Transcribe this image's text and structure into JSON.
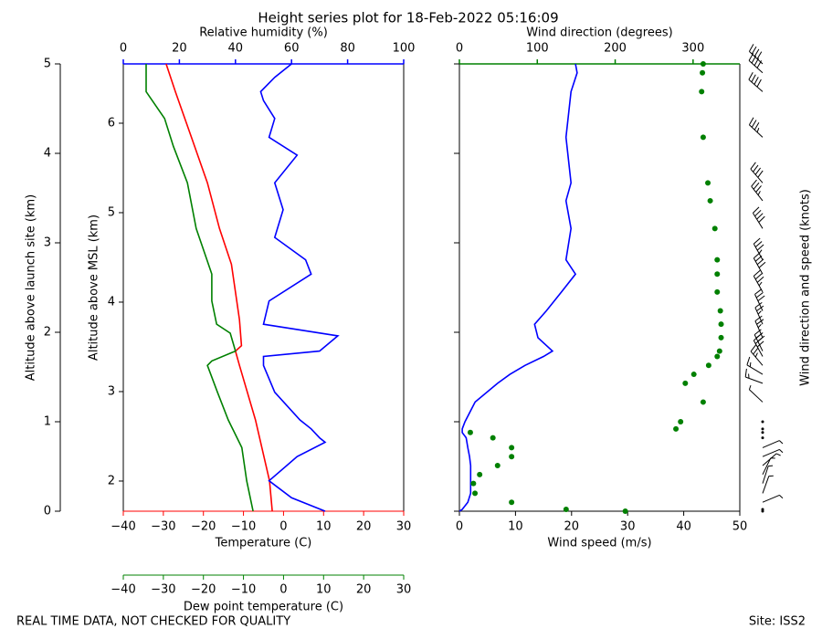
{
  "title": "Height series plot for 18-Feb-2022 05:16:09",
  "notice": "REAL TIME DATA, NOT CHECKED FOR QUALITY",
  "site": "Site: ISS2",
  "chart_data": [
    {
      "type": "line",
      "ylabel": "Altitude above launch site (km)",
      "ylim": [
        0,
        5
      ],
      "yticks": [
        0,
        1,
        2,
        3,
        4,
        5
      ],
      "y2label": "Altitude above MSL (km)",
      "y2lim": [
        1.663,
        6.663
      ],
      "y2ticks": [
        2,
        3,
        4,
        5,
        6
      ],
      "xlabel": "Temperature (C)",
      "xlim": [
        -40,
        30
      ],
      "xticks": [
        {
          "value": -40,
          "label": "−40"
        },
        {
          "value": -30,
          "label": "−30"
        },
        {
          "value": -20,
          "label": "−20"
        },
        {
          "value": -10,
          "label": "−10"
        },
        0,
        10,
        20,
        30
      ],
      "x2label": "Dew point temperature (C)",
      "x2lim": [
        -40,
        30
      ],
      "x2ticks": [
        {
          "value": -40,
          "label": "−40"
        },
        {
          "value": -30,
          "label": "−30"
        },
        {
          "value": -20,
          "label": "−20"
        },
        {
          "value": -10,
          "label": "−10"
        },
        0,
        10,
        20,
        30
      ],
      "x3label": "Relative humidity (%)",
      "x3lim": [
        0,
        100
      ],
      "x3ticks": [
        0,
        20,
        40,
        60,
        80,
        100
      ],
      "series": [
        {
          "color": "#ff0000",
          "axis": "x",
          "altitude": [
            0,
            0.34,
            1.02,
            1.63,
            1.79,
            1.85,
            2.14,
            2.76,
            3.16,
            3.67,
            4.18,
            4.69,
            5.0
          ],
          "values": [
            -2.8,
            -3.5,
            -7,
            -11,
            -12,
            -10.5,
            -11,
            -13,
            -16,
            -19,
            -23,
            -27,
            -29.3
          ]
        },
        {
          "color": "#008000",
          "axis": "x2",
          "altitude": [
            0,
            0.34,
            0.71,
            1.02,
            1.33,
            1.63,
            1.68,
            1.79,
            1.99,
            2.09,
            2.35,
            2.65,
            2.86,
            3.16,
            3.67,
            4.08,
            4.39,
            4.69,
            5.0
          ],
          "values": [
            -7.6,
            -9.2,
            -10.4,
            -13.8,
            -16.5,
            -19,
            -17.9,
            -12,
            -13.3,
            -16.7,
            -17.9,
            -17.9,
            -19.5,
            -21.8,
            -24,
            -27.5,
            -29.7,
            -34.3,
            -34.3
          ]
        },
        {
          "color": "#0000ff",
          "axis": "x3",
          "altitude": [
            0,
            0.15,
            0.34,
            0.61,
            0.77,
            0.82,
            0.92,
            1.02,
            1.33,
            1.63,
            1.73,
            1.79,
            1.96,
            2.09,
            2.35,
            2.65,
            2.81,
            3.06,
            3.37,
            3.67,
            3.98,
            4.18,
            4.39,
            4.59,
            4.69,
            4.85,
            5.0
          ],
          "values": [
            72,
            60,
            52,
            62,
            72,
            70,
            67,
            63,
            54,
            50,
            50,
            70,
            76.5,
            50,
            52,
            67,
            65,
            54,
            57,
            54,
            62,
            52,
            54,
            50,
            49,
            54,
            60
          ]
        }
      ]
    },
    {
      "type": "wind",
      "ylim": [
        0,
        5
      ],
      "yticks": [
        0,
        1,
        2,
        3,
        4,
        5
      ],
      "xlabel": "Wind speed (m/s)",
      "xlim": [
        0,
        50
      ],
      "xticks": [
        0,
        10,
        20,
        30,
        40,
        50
      ],
      "x3label": "Wind direction (degrees)",
      "x3lim": [
        0,
        360
      ],
      "x3ticks": [
        0,
        100,
        200,
        300
      ],
      "barb_label": "Wind direction and speed (knots)",
      "altitude": [
        0,
        0.02,
        0.1,
        0.2,
        0.31,
        0.41,
        0.51,
        0.61,
        0.71,
        0.82,
        0.88,
        0.92,
        1.0,
        1.22,
        1.43,
        1.53,
        1.63,
        1.73,
        1.79,
        1.94,
        2.09,
        2.24,
        2.45,
        2.65,
        2.81,
        3.16,
        3.47,
        3.67,
        4.18,
        4.69,
        4.9,
        5.0
      ],
      "series": [
        {
          "color": "#0000ff",
          "axis": "x",
          "values": [
            0,
            0.5,
            1.5,
            2,
            2,
            2,
            2,
            1.8,
            1.5,
            1.2,
            0.5,
            0.5,
            1,
            2.8,
            6.8,
            9,
            11.7,
            15,
            16.6,
            14,
            13.4,
            15.5,
            18.2,
            20.7,
            19,
            19.9,
            19,
            19.9,
            19,
            19.9,
            21,
            20.7
          ]
        },
        {
          "color": "#008000",
          "axis": "x3",
          "values": [
            213,
            137,
            67,
            20,
            18,
            26,
            49,
            67,
            67,
            43,
            14,
            278,
            284,
            313,
            290,
            301,
            320,
            331,
            334,
            336,
            336,
            335,
            331,
            331,
            331,
            328,
            322,
            319,
            313,
            311,
            312,
            313
          ]
        }
      ]
    }
  ]
}
